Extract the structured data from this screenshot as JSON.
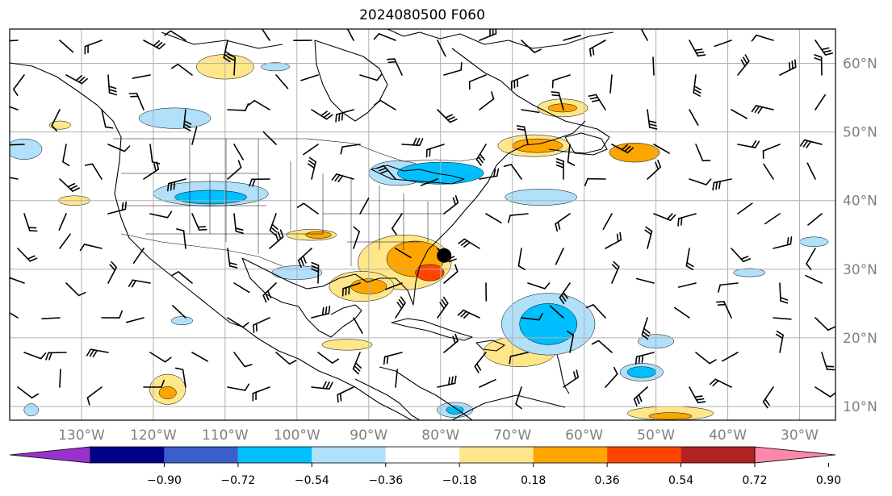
{
  "title": "2024080500 F060",
  "map": {
    "lon_range": [
      -140,
      -25
    ],
    "lat_range": [
      8,
      65
    ],
    "lon_ticks": [
      {
        "value": -130,
        "label": "130°W"
      },
      {
        "value": -120,
        "label": "120°W"
      },
      {
        "value": -110,
        "label": "110°W"
      },
      {
        "value": -100,
        "label": "100°W"
      },
      {
        "value": -90,
        "label": "90°W"
      },
      {
        "value": -80,
        "label": "80°W"
      },
      {
        "value": -70,
        "label": "70°W"
      },
      {
        "value": -60,
        "label": "60°W"
      },
      {
        "value": -50,
        "label": "50°W"
      },
      {
        "value": -40,
        "label": "40°W"
      },
      {
        "value": -30,
        "label": "30°W"
      }
    ],
    "lat_ticks": [
      {
        "value": 60,
        "label": "60°N"
      },
      {
        "value": 50,
        "label": "50°N"
      },
      {
        "value": 40,
        "label": "40°N"
      },
      {
        "value": 30,
        "label": "30°N"
      },
      {
        "value": 20,
        "label": "20°N"
      },
      {
        "value": 10,
        "label": "10°N"
      }
    ],
    "grid": true,
    "gridline_color": "#b0b0b0",
    "coastline_color": "#000000",
    "storm_marker": {
      "lon": -79.5,
      "lat": 32
    }
  },
  "colorbar": {
    "levels": [
      "−0.90",
      "−0.72",
      "−0.54",
      "−0.36",
      "−0.18",
      "0.18",
      "0.36",
      "0.54",
      "0.72",
      "0.90"
    ],
    "colors": [
      "#9932cc",
      "#00008b",
      "#3a5fcd",
      "#00bfff",
      "#b0e0fa",
      "#ffffff",
      "#ffe68a",
      "#ffa500",
      "#ff4500",
      "#b22222",
      "#ff88aa"
    ],
    "extend": "both"
  },
  "shaded_regions": [
    {
      "lon": -85,
      "lat": 31,
      "rlon": 6.5,
      "rlat": 4,
      "level": 1
    },
    {
      "lon": -83.5,
      "lat": 31.5,
      "rlon": 4,
      "rlat": 2.6,
      "level": 2
    },
    {
      "lon": -81.5,
      "lat": 29.5,
      "rlon": 2,
      "rlat": 1.2,
      "level": 3
    },
    {
      "lon": -91,
      "lat": 27.5,
      "rlon": 4.5,
      "rlat": 2.2,
      "level": 1
    },
    {
      "lon": -90,
      "lat": 27.5,
      "rlon": 2.5,
      "rlat": 1.1,
      "level": 2
    },
    {
      "lon": -69,
      "lat": 18,
      "rlon": 4.2,
      "rlat": 1.8,
      "level": 2
    },
    {
      "lon": -69,
      "lat": 18,
      "rlon": 5,
      "rlat": 2.2,
      "level": 1
    },
    {
      "lon": -67,
      "lat": 48,
      "rlon": 5,
      "rlat": 1.6,
      "level": 1
    },
    {
      "lon": -66.5,
      "lat": 48,
      "rlon": 3.5,
      "rlat": 1.0,
      "level": 2
    },
    {
      "lon": -53,
      "lat": 47,
      "rlon": 3.5,
      "rlat": 1.4,
      "level": 2
    },
    {
      "lon": -63,
      "lat": 53.5,
      "rlon": 3.5,
      "rlat": 1.3,
      "level": 1
    },
    {
      "lon": -63,
      "lat": 53.5,
      "rlon": 2.0,
      "rlat": 0.6,
      "level": 2
    },
    {
      "lon": -110,
      "lat": 59.5,
      "rlon": 4,
      "rlat": 1.8,
      "level": 1
    },
    {
      "lon": -98,
      "lat": 35,
      "rlon": 3.5,
      "rlat": 0.8,
      "level": 1
    },
    {
      "lon": -97,
      "lat": 35,
      "rlon": 1.8,
      "rlat": 0.5,
      "level": 2
    },
    {
      "lon": -118,
      "lat": 12.5,
      "rlon": 2.5,
      "rlat": 2.2,
      "level": 1
    },
    {
      "lon": -118,
      "lat": 12,
      "rlon": 1.2,
      "rlat": 0.9,
      "level": 2
    },
    {
      "lon": -93,
      "lat": 19,
      "rlon": 3.5,
      "rlat": 0.8,
      "level": 1
    },
    {
      "lon": -48,
      "lat": 9,
      "rlon": 6,
      "rlat": 1.0,
      "level": 1
    },
    {
      "lon": -48,
      "lat": 8.6,
      "rlon": 3,
      "rlat": 0.5,
      "level": 2
    },
    {
      "lon": -133,
      "lat": 51,
      "rlon": 1.5,
      "rlat": 0.6,
      "level": 1
    },
    {
      "lon": -131,
      "lat": 40,
      "rlon": 2.2,
      "rlat": 0.7,
      "level": 1
    },
    {
      "lon": -86,
      "lat": 44,
      "rlon": 4,
      "rlat": 1.8,
      "level": -1
    },
    {
      "lon": -80,
      "lat": 44,
      "rlon": 6,
      "rlat": 1.6,
      "level": -2
    },
    {
      "lon": -66,
      "lat": 40.5,
      "rlon": 5,
      "rlat": 1.2,
      "level": -1
    },
    {
      "lon": -112,
      "lat": 41,
      "rlon": 8,
      "rlat": 1.8,
      "level": -1
    },
    {
      "lon": -112,
      "lat": 40.5,
      "rlon": 5,
      "rlat": 1.0,
      "level": -2
    },
    {
      "lon": -117,
      "lat": 52,
      "rlon": 5,
      "rlat": 1.5,
      "level": -1
    },
    {
      "lon": -65,
      "lat": 22,
      "rlon": 6.5,
      "rlat": 4.5,
      "level": -1
    },
    {
      "lon": -65,
      "lat": 22,
      "rlon": 4,
      "rlat": 3,
      "level": -2
    },
    {
      "lon": -52,
      "lat": 15,
      "rlon": 3,
      "rlat": 1.3,
      "level": -1
    },
    {
      "lon": -52,
      "lat": 15,
      "rlon": 2,
      "rlat": 0.8,
      "level": -2
    },
    {
      "lon": -50,
      "lat": 19.5,
      "rlon": 2.5,
      "rlat": 1.0,
      "level": -1
    },
    {
      "lon": -100,
      "lat": 29.5,
      "rlon": 3.5,
      "rlat": 1.0,
      "level": -1
    },
    {
      "lon": -138,
      "lat": 47.5,
      "rlon": 2.5,
      "rlat": 1.5,
      "level": -1
    },
    {
      "lon": -116,
      "lat": 22.5,
      "rlon": 1.5,
      "rlat": 0.6,
      "level": -1
    },
    {
      "lon": -103,
      "lat": 59.5,
      "rlon": 2,
      "rlat": 0.6,
      "level": -1
    },
    {
      "lon": -78,
      "lat": 9.5,
      "rlon": 2.5,
      "rlat": 1.1,
      "level": -1
    },
    {
      "lon": -78,
      "lat": 9.5,
      "rlon": 1.2,
      "rlat": 0.6,
      "level": -2
    },
    {
      "lon": -37,
      "lat": 29.5,
      "rlon": 2.2,
      "rlat": 0.6,
      "level": -1
    },
    {
      "lon": -137,
      "lat": 9.5,
      "rlon": 1,
      "rlat": 0.9,
      "level": -1
    },
    {
      "lon": -28,
      "lat": 34,
      "rlon": 2,
      "rlat": 0.7,
      "level": -1
    }
  ]
}
